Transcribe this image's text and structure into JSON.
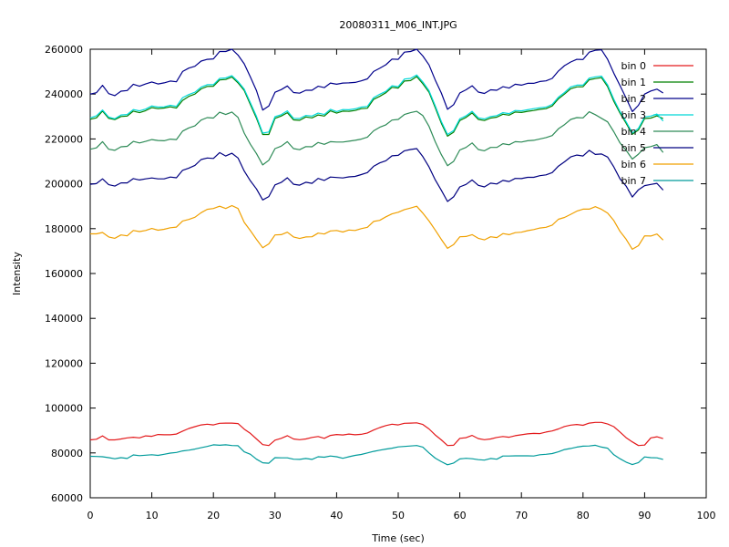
{
  "chart_data": {
    "type": "line",
    "title": "20080311_M06_INT.JPG",
    "xlabel": "Time (sec)",
    "ylabel": "Intensity",
    "xlim": [
      0,
      100
    ],
    "ylim": [
      60000,
      260000
    ],
    "grid": false,
    "legend_position": "top-right",
    "x_ticks": [
      0,
      10,
      20,
      30,
      40,
      50,
      60,
      70,
      80,
      90,
      100
    ],
    "y_ticks": [
      60000,
      80000,
      100000,
      120000,
      140000,
      160000,
      180000,
      200000,
      220000,
      240000,
      260000
    ],
    "x_tick_labels": [
      "0",
      "10",
      "20",
      "30",
      "40",
      "50",
      "60",
      "70",
      "80",
      "90",
      "100"
    ],
    "y_tick_labels": [
      "60000",
      "80000",
      "100000",
      "120000",
      "140000",
      "160000",
      "180000",
      "200000",
      "220000",
      "240000",
      "260000"
    ],
    "x": [
      0,
      1,
      2,
      3,
      4,
      5,
      6,
      7,
      8,
      9,
      10,
      11,
      12,
      13,
      14,
      15,
      16,
      17,
      18,
      19,
      20,
      21,
      22,
      23,
      24,
      25,
      26,
      27,
      28,
      29,
      30,
      31,
      32,
      33,
      34,
      35,
      36,
      37,
      38,
      39,
      40,
      41,
      42,
      43,
      44,
      45,
      46,
      47,
      48,
      49,
      50,
      51,
      52,
      53,
      54,
      55,
      56,
      57,
      58,
      59,
      60,
      61,
      62,
      63,
      64,
      65,
      66,
      67,
      68,
      69,
      70,
      71,
      72,
      73,
      74,
      75,
      76,
      77,
      78,
      79,
      80,
      81,
      82,
      83,
      84,
      85,
      86,
      87,
      88,
      89,
      90,
      91,
      92,
      93
    ],
    "series": [
      {
        "name": "bin 0",
        "color": "#e31a1c",
        "values": [
          85800,
          86100,
          87600,
          85800,
          85800,
          86200,
          86700,
          87000,
          86700,
          87600,
          87400,
          88200,
          88100,
          88100,
          88400,
          89700,
          90900,
          91700,
          92500,
          92800,
          92500,
          93200,
          93300,
          93300,
          93100,
          90600,
          88700,
          86200,
          83700,
          83300,
          85700,
          86500,
          87700,
          86200,
          85900,
          86200,
          86900,
          87300,
          86500,
          87800,
          88200,
          88000,
          88400,
          88100,
          88300,
          88900,
          90200,
          91300,
          92200,
          92800,
          92500,
          93200,
          93300,
          93400,
          92700,
          90700,
          88000,
          85800,
          83300,
          83400,
          86500,
          86800,
          87800,
          86400,
          85900,
          86200,
          86900,
          87300,
          87000,
          87700,
          88100,
          88500,
          88700,
          88600,
          89300,
          89800,
          90700,
          91800,
          92400,
          92700,
          92300,
          93300,
          93600,
          93600,
          92900,
          91700,
          89300,
          86800,
          84900,
          83300,
          83500,
          86700,
          87200,
          86400
        ]
      },
      {
        "name": "bin 1",
        "color": "#008000",
        "values": [
          228800,
          229400,
          232400,
          229200,
          228600,
          230000,
          230200,
          232400,
          231700,
          232600,
          234000,
          233500,
          233800,
          234300,
          233800,
          237200,
          239000,
          240000,
          242300,
          243400,
          243500,
          246300,
          246500,
          247600,
          245000,
          241600,
          235300,
          229200,
          222000,
          222000,
          229200,
          230200,
          231700,
          228500,
          228300,
          229800,
          229400,
          230700,
          230200,
          232500,
          231500,
          232400,
          232300,
          232700,
          233500,
          233700,
          237700,
          239000,
          240600,
          243000,
          242700,
          245800,
          246000,
          247800,
          244600,
          240800,
          234000,
          227000,
          221200,
          223000,
          228200,
          229600,
          231600,
          228700,
          228200,
          229300,
          229700,
          231000,
          230600,
          232000,
          231800,
          232300,
          232700,
          233200,
          233500,
          234700,
          237900,
          240000,
          242400,
          243200,
          243300,
          246400,
          246900,
          247300,
          243300,
          236800,
          231500,
          227000,
          222100,
          224000,
          229100,
          229300,
          230300,
          229100
        ]
      },
      {
        "name": "bin 2",
        "color": "#00008b",
        "values": [
          240000,
          240600,
          243900,
          240200,
          239300,
          241300,
          241600,
          244400,
          243500,
          244500,
          245400,
          244500,
          245000,
          245800,
          245500,
          250100,
          251600,
          252400,
          254700,
          255500,
          255700,
          259000,
          259000,
          260000,
          257400,
          253500,
          247600,
          241500,
          232900,
          234700,
          240800,
          242000,
          243600,
          240700,
          240400,
          241700,
          241700,
          243500,
          242900,
          244900,
          244400,
          244900,
          245000,
          245200,
          245900,
          246800,
          250100,
          251500,
          253100,
          255600,
          255500,
          258700,
          259000,
          260000,
          257000,
          253000,
          246300,
          240500,
          233200,
          235300,
          240500,
          241900,
          243700,
          240900,
          240300,
          241900,
          241700,
          243300,
          242700,
          244400,
          244000,
          244800,
          244800,
          245600,
          245900,
          247000,
          250300,
          252700,
          254300,
          255500,
          255400,
          258700,
          259500,
          259700,
          255500,
          249300,
          243800,
          238200,
          232200,
          235000,
          240000,
          241400,
          242200,
          240500
        ]
      },
      {
        "name": "bin 3",
        "color": "#00d8d8",
        "values": [
          229400,
          230300,
          232900,
          229700,
          229000,
          230700,
          230900,
          233100,
          232500,
          233300,
          234700,
          234200,
          234300,
          235000,
          234500,
          238400,
          239800,
          240800,
          243100,
          244200,
          244200,
          247000,
          247200,
          248200,
          245600,
          242200,
          236100,
          230000,
          222600,
          223100,
          229900,
          230800,
          232500,
          229200,
          229100,
          230500,
          230200,
          231500,
          230900,
          233200,
          232200,
          233100,
          233000,
          233400,
          234200,
          234500,
          238400,
          239900,
          241200,
          243700,
          243300,
          246700,
          247000,
          248500,
          245400,
          241500,
          234800,
          227800,
          222000,
          223700,
          229000,
          230300,
          232300,
          229400,
          228900,
          230000,
          230400,
          231700,
          231300,
          232700,
          232500,
          233000,
          233500,
          233900,
          234200,
          235400,
          238600,
          240700,
          243200,
          244000,
          244000,
          247100,
          247700,
          248000,
          244100,
          237700,
          232200,
          227700,
          222700,
          224700,
          229800,
          230200,
          231100,
          228000
        ]
      },
      {
        "name": "bin 4",
        "color": "#2e8b57",
        "values": [
          215400,
          216000,
          218800,
          215400,
          214900,
          216500,
          216700,
          218900,
          218200,
          218900,
          219700,
          219300,
          219200,
          219900,
          219700,
          223500,
          224900,
          225800,
          228400,
          229500,
          229300,
          231900,
          230900,
          232000,
          229600,
          222600,
          217600,
          213400,
          208400,
          210500,
          215700,
          216800,
          218800,
          215700,
          215200,
          216600,
          216500,
          218400,
          217600,
          218800,
          218600,
          218600,
          219000,
          219400,
          219900,
          220800,
          223600,
          225200,
          226300,
          228400,
          228700,
          230900,
          231700,
          232300,
          230400,
          225600,
          218800,
          213000,
          208100,
          210000,
          215100,
          216200,
          218200,
          215300,
          214700,
          216200,
          216200,
          217900,
          217400,
          218800,
          218600,
          219200,
          219400,
          220000,
          220600,
          221500,
          224500,
          226400,
          228700,
          229500,
          229400,
          232100,
          230800,
          229200,
          227600,
          223200,
          218200,
          214900,
          211000,
          213200,
          216100,
          216600,
          217500,
          214000
        ]
      },
      {
        "name": "bin 5",
        "color": "#000080",
        "values": [
          199800,
          200100,
          202200,
          199600,
          199000,
          200400,
          200400,
          202300,
          201700,
          202200,
          202600,
          202200,
          202200,
          203000,
          202700,
          206000,
          207000,
          208200,
          210800,
          211500,
          211300,
          213900,
          212400,
          213600,
          211500,
          205700,
          201300,
          197700,
          192800,
          194300,
          199500,
          200600,
          202700,
          199800,
          199400,
          200700,
          200200,
          202400,
          201500,
          203000,
          202800,
          202600,
          203100,
          203300,
          204100,
          205000,
          207800,
          209300,
          210300,
          212500,
          212700,
          214700,
          215300,
          215700,
          212100,
          207500,
          201800,
          197100,
          192100,
          194200,
          198600,
          199700,
          201700,
          199300,
          198600,
          200300,
          199900,
          201500,
          201000,
          202400,
          202300,
          202900,
          202900,
          203600,
          204000,
          205000,
          207900,
          209800,
          212000,
          212800,
          212400,
          214900,
          213100,
          213300,
          211900,
          207500,
          202200,
          199000,
          194100,
          197300,
          199200,
          199700,
          200200,
          197200
        ]
      },
      {
        "name": "bin 6",
        "color": "#f0a000",
        "values": [
          177700,
          177700,
          178300,
          176300,
          175700,
          177200,
          176800,
          179200,
          178700,
          179200,
          180100,
          179300,
          179700,
          180400,
          180700,
          183400,
          184100,
          185100,
          187100,
          188600,
          189000,
          190000,
          189000,
          190300,
          189000,
          182800,
          179100,
          175200,
          171500,
          173200,
          177200,
          177300,
          178400,
          176300,
          175600,
          176300,
          176400,
          178000,
          177600,
          179000,
          179200,
          178500,
          179400,
          179200,
          180000,
          180600,
          183200,
          183700,
          185300,
          186600,
          187300,
          188500,
          189200,
          190000,
          186900,
          183400,
          179400,
          175200,
          171200,
          172900,
          176400,
          176500,
          177300,
          175700,
          175000,
          176400,
          176000,
          177800,
          177300,
          178200,
          178400,
          179100,
          179600,
          180300,
          180600,
          181600,
          184200,
          185000,
          186400,
          187800,
          188700,
          188700,
          189800,
          188600,
          186900,
          183600,
          178800,
          175300,
          170800,
          172400,
          176800,
          176700,
          177600,
          174900
        ]
      },
      {
        "name": "bin 7",
        "color": "#009b9b",
        "values": [
          78500,
          78400,
          78300,
          77900,
          77400,
          77900,
          77500,
          79100,
          78800,
          79000,
          79200,
          78900,
          79400,
          79900,
          80200,
          80900,
          81200,
          81700,
          82300,
          82900,
          83600,
          83400,
          83600,
          83300,
          83200,
          80500,
          79400,
          77200,
          75600,
          75400,
          77900,
          77800,
          77800,
          77200,
          77100,
          77500,
          77100,
          78300,
          78100,
          78600,
          78300,
          77600,
          78300,
          78900,
          79300,
          80000,
          80700,
          81200,
          81700,
          82100,
          82700,
          82900,
          83100,
          83300,
          82600,
          80000,
          77700,
          76100,
          74700,
          75500,
          77300,
          77600,
          77400,
          77000,
          76800,
          77500,
          77200,
          78600,
          78600,
          78700,
          78700,
          78700,
          78600,
          79200,
          79400,
          79700,
          80500,
          81500,
          82000,
          82600,
          83000,
          83100,
          83400,
          82600,
          82100,
          79200,
          77400,
          75900,
          74800,
          75700,
          78200,
          77900,
          77800,
          77100
        ]
      }
    ]
  }
}
